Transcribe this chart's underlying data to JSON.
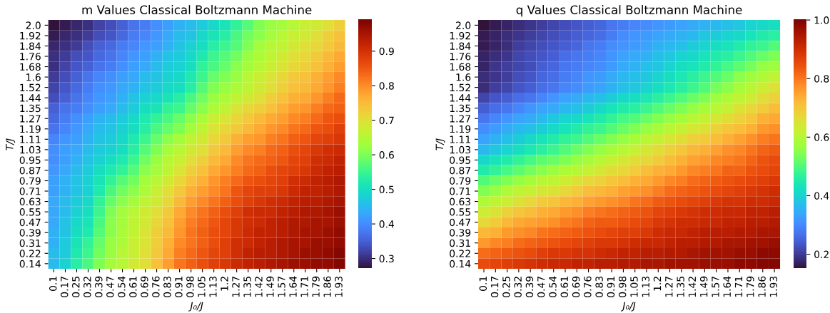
{
  "chart_data": [
    {
      "type": "heatmap",
      "title": "m Values Classical Boltzmann Machine",
      "xlabel": "J₀/J",
      "ylabel": "T/J",
      "categories": [
        "0.1",
        "0.17",
        "0.25",
        "0.32",
        "0.39",
        "0.47",
        "0.54",
        "0.61",
        "0.69",
        "0.76",
        "0.83",
        "0.91",
        "0.98",
        "1.05",
        "1.13",
        "1.2",
        "1.27",
        "1.35",
        "1.42",
        "1.49",
        "1.57",
        "1.64",
        "1.71",
        "1.79",
        "1.86",
        "1.93"
      ],
      "y_categories": [
        "2.0",
        "1.92",
        "1.84",
        "1.76",
        "1.68",
        "1.6",
        "1.52",
        "1.44",
        "1.35",
        "1.27",
        "1.19",
        "1.11",
        "1.03",
        "0.95",
        "0.87",
        "0.79",
        "0.71",
        "0.63",
        "0.55",
        "0.47",
        "0.39",
        "0.31",
        "0.22",
        "0.14"
      ],
      "clim": [
        0.27,
        0.99
      ],
      "cticks": [
        0.3,
        0.4,
        0.5,
        0.6,
        0.7,
        0.8,
        0.9
      ],
      "cells": [
        [
          0.27,
          0.28,
          0.29,
          0.3,
          0.32,
          0.33,
          0.35,
          0.37,
          0.38,
          0.4,
          0.42,
          0.44,
          0.45,
          0.47,
          0.49,
          0.51,
          0.54,
          0.57,
          0.6,
          0.62,
          0.63,
          0.65,
          0.67,
          0.68,
          0.7,
          0.72
        ],
        [
          0.28,
          0.29,
          0.3,
          0.31,
          0.33,
          0.34,
          0.36,
          0.38,
          0.39,
          0.41,
          0.43,
          0.45,
          0.46,
          0.49,
          0.51,
          0.53,
          0.56,
          0.59,
          0.61,
          0.63,
          0.65,
          0.67,
          0.68,
          0.7,
          0.72,
          0.74
        ],
        [
          0.29,
          0.3,
          0.31,
          0.33,
          0.35,
          0.36,
          0.38,
          0.39,
          0.41,
          0.42,
          0.44,
          0.46,
          0.48,
          0.5,
          0.53,
          0.55,
          0.57,
          0.6,
          0.63,
          0.65,
          0.66,
          0.68,
          0.7,
          0.71,
          0.73,
          0.75
        ],
        [
          0.3,
          0.31,
          0.33,
          0.34,
          0.36,
          0.37,
          0.39,
          0.41,
          0.42,
          0.44,
          0.46,
          0.47,
          0.49,
          0.52,
          0.55,
          0.57,
          0.59,
          0.62,
          0.64,
          0.66,
          0.68,
          0.7,
          0.71,
          0.73,
          0.75,
          0.77
        ],
        [
          0.3,
          0.32,
          0.34,
          0.35,
          0.37,
          0.38,
          0.4,
          0.42,
          0.43,
          0.45,
          0.47,
          0.48,
          0.5,
          0.54,
          0.56,
          0.58,
          0.61,
          0.63,
          0.65,
          0.67,
          0.69,
          0.71,
          0.72,
          0.74,
          0.76,
          0.78
        ],
        [
          0.31,
          0.33,
          0.35,
          0.37,
          0.39,
          0.4,
          0.42,
          0.43,
          0.45,
          0.46,
          0.48,
          0.49,
          0.52,
          0.55,
          0.58,
          0.6,
          0.62,
          0.65,
          0.67,
          0.69,
          0.71,
          0.73,
          0.74,
          0.76,
          0.78,
          0.8
        ],
        [
          0.32,
          0.34,
          0.36,
          0.38,
          0.4,
          0.41,
          0.43,
          0.44,
          0.46,
          0.47,
          0.49,
          0.5,
          0.53,
          0.57,
          0.6,
          0.62,
          0.64,
          0.66,
          0.68,
          0.7,
          0.72,
          0.74,
          0.75,
          0.77,
          0.79,
          0.81
        ],
        [
          0.33,
          0.35,
          0.37,
          0.39,
          0.41,
          0.42,
          0.44,
          0.46,
          0.48,
          0.49,
          0.51,
          0.53,
          0.56,
          0.59,
          0.62,
          0.64,
          0.66,
          0.68,
          0.7,
          0.72,
          0.74,
          0.76,
          0.77,
          0.79,
          0.81,
          0.83
        ],
        [
          0.35,
          0.37,
          0.38,
          0.4,
          0.42,
          0.43,
          0.45,
          0.47,
          0.5,
          0.51,
          0.54,
          0.55,
          0.58,
          0.61,
          0.64,
          0.66,
          0.69,
          0.71,
          0.72,
          0.74,
          0.76,
          0.78,
          0.79,
          0.81,
          0.83,
          0.84
        ],
        [
          0.36,
          0.38,
          0.4,
          0.42,
          0.44,
          0.45,
          0.47,
          0.49,
          0.52,
          0.54,
          0.56,
          0.58,
          0.61,
          0.64,
          0.67,
          0.69,
          0.71,
          0.73,
          0.75,
          0.77,
          0.78,
          0.8,
          0.81,
          0.83,
          0.85,
          0.86
        ],
        [
          0.37,
          0.39,
          0.41,
          0.43,
          0.45,
          0.46,
          0.48,
          0.5,
          0.53,
          0.56,
          0.58,
          0.6,
          0.63,
          0.66,
          0.69,
          0.71,
          0.73,
          0.75,
          0.77,
          0.79,
          0.8,
          0.82,
          0.83,
          0.85,
          0.86,
          0.88
        ],
        [
          0.39,
          0.41,
          0.42,
          0.44,
          0.46,
          0.47,
          0.49,
          0.52,
          0.55,
          0.58,
          0.61,
          0.63,
          0.66,
          0.68,
          0.71,
          0.73,
          0.76,
          0.78,
          0.79,
          0.81,
          0.82,
          0.84,
          0.85,
          0.87,
          0.88,
          0.89
        ],
        [
          0.4,
          0.42,
          0.43,
          0.45,
          0.47,
          0.48,
          0.5,
          0.53,
          0.57,
          0.6,
          0.63,
          0.65,
          0.68,
          0.7,
          0.73,
          0.75,
          0.78,
          0.8,
          0.81,
          0.83,
          0.84,
          0.86,
          0.87,
          0.89,
          0.9,
          0.91
        ],
        [
          0.4,
          0.42,
          0.44,
          0.46,
          0.48,
          0.5,
          0.52,
          0.55,
          0.59,
          0.62,
          0.65,
          0.67,
          0.7,
          0.72,
          0.75,
          0.77,
          0.8,
          0.82,
          0.83,
          0.84,
          0.85,
          0.87,
          0.88,
          0.9,
          0.91,
          0.92
        ],
        [
          0.41,
          0.43,
          0.45,
          0.47,
          0.5,
          0.52,
          0.54,
          0.57,
          0.61,
          0.63,
          0.66,
          0.69,
          0.72,
          0.74,
          0.77,
          0.79,
          0.81,
          0.83,
          0.84,
          0.86,
          0.87,
          0.88,
          0.89,
          0.91,
          0.92,
          0.93
        ],
        [
          0.42,
          0.44,
          0.46,
          0.48,
          0.51,
          0.54,
          0.57,
          0.59,
          0.63,
          0.65,
          0.68,
          0.71,
          0.74,
          0.76,
          0.79,
          0.81,
          0.83,
          0.85,
          0.86,
          0.87,
          0.88,
          0.9,
          0.91,
          0.92,
          0.93,
          0.94
        ],
        [
          0.42,
          0.44,
          0.46,
          0.48,
          0.52,
          0.56,
          0.59,
          0.61,
          0.64,
          0.67,
          0.7,
          0.73,
          0.76,
          0.78,
          0.8,
          0.82,
          0.85,
          0.87,
          0.88,
          0.88,
          0.89,
          0.91,
          0.92,
          0.92,
          0.93,
          0.94
        ],
        [
          0.43,
          0.45,
          0.47,
          0.49,
          0.54,
          0.58,
          0.61,
          0.63,
          0.66,
          0.68,
          0.71,
          0.75,
          0.78,
          0.8,
          0.82,
          0.84,
          0.86,
          0.88,
          0.89,
          0.9,
          0.91,
          0.92,
          0.93,
          0.93,
          0.94,
          0.95
        ],
        [
          0.43,
          0.45,
          0.48,
          0.5,
          0.55,
          0.6,
          0.63,
          0.65,
          0.68,
          0.7,
          0.73,
          0.77,
          0.8,
          0.82,
          0.84,
          0.86,
          0.88,
          0.9,
          0.91,
          0.91,
          0.92,
          0.93,
          0.94,
          0.94,
          0.95,
          0.96
        ],
        [
          0.43,
          0.46,
          0.49,
          0.51,
          0.56,
          0.61,
          0.63,
          0.66,
          0.68,
          0.71,
          0.74,
          0.78,
          0.81,
          0.83,
          0.85,
          0.87,
          0.89,
          0.9,
          0.91,
          0.92,
          0.93,
          0.94,
          0.94,
          0.95,
          0.95,
          0.96
        ],
        [
          0.44,
          0.46,
          0.5,
          0.52,
          0.57,
          0.61,
          0.64,
          0.66,
          0.69,
          0.72,
          0.75,
          0.79,
          0.82,
          0.84,
          0.86,
          0.87,
          0.89,
          0.91,
          0.92,
          0.92,
          0.93,
          0.94,
          0.95,
          0.95,
          0.96,
          0.97
        ],
        [
          0.44,
          0.47,
          0.51,
          0.54,
          0.58,
          0.62,
          0.64,
          0.67,
          0.69,
          0.72,
          0.76,
          0.8,
          0.82,
          0.84,
          0.86,
          0.88,
          0.9,
          0.91,
          0.92,
          0.93,
          0.94,
          0.95,
          0.95,
          0.96,
          0.96,
          0.97
        ],
        [
          0.45,
          0.47,
          0.52,
          0.55,
          0.59,
          0.62,
          0.65,
          0.67,
          0.7,
          0.73,
          0.77,
          0.81,
          0.83,
          0.85,
          0.87,
          0.88,
          0.9,
          0.92,
          0.93,
          0.93,
          0.94,
          0.95,
          0.96,
          0.96,
          0.97,
          0.98
        ],
        [
          0.45,
          0.48,
          0.53,
          0.56,
          0.6,
          0.63,
          0.65,
          0.68,
          0.7,
          0.74,
          0.78,
          0.82,
          0.84,
          0.86,
          0.88,
          0.89,
          0.91,
          0.92,
          0.93,
          0.94,
          0.95,
          0.96,
          0.96,
          0.97,
          0.97,
          0.98
        ]
      ]
    },
    {
      "type": "heatmap",
      "title": "q Values Classical Boltzmann Machine",
      "xlabel": "J₀/J",
      "ylabel": "T/J",
      "categories": [
        "0.1",
        "0.17",
        "0.25",
        "0.32",
        "0.39",
        "0.47",
        "0.54",
        "0.61",
        "0.69",
        "0.76",
        "0.83",
        "0.91",
        "0.98",
        "1.05",
        "1.13",
        "1.2",
        "1.27",
        "1.35",
        "1.42",
        "1.49",
        "1.57",
        "1.64",
        "1.71",
        "1.79",
        "1.86",
        "1.93"
      ],
      "y_categories": [
        "2.0",
        "1.92",
        "1.84",
        "1.76",
        "1.68",
        "1.6",
        "1.52",
        "1.44",
        "1.35",
        "1.27",
        "1.19",
        "1.11",
        "1.03",
        "0.95",
        "0.87",
        "0.79",
        "0.71",
        "0.63",
        "0.55",
        "0.47",
        "0.39",
        "0.31",
        "0.22",
        "0.14"
      ],
      "clim": [
        0.15,
        1.0
      ],
      "cticks": [
        0.2,
        0.4,
        0.6,
        0.8,
        {
          "value": 1.0,
          "label": "1.0"
        }
      ],
      "cells": [
        [
          0.15,
          0.16,
          0.17,
          0.18,
          0.19,
          0.2,
          0.21,
          0.22,
          0.23,
          0.24,
          0.25,
          0.27,
          0.28,
          0.29,
          0.3,
          0.31,
          0.32,
          0.33,
          0.34,
          0.35,
          0.36,
          0.37,
          0.38,
          0.4,
          0.41,
          0.42
        ],
        [
          0.16,
          0.17,
          0.18,
          0.19,
          0.2,
          0.21,
          0.22,
          0.23,
          0.24,
          0.25,
          0.26,
          0.28,
          0.3,
          0.31,
          0.32,
          0.33,
          0.34,
          0.35,
          0.36,
          0.38,
          0.39,
          0.4,
          0.41,
          0.43,
          0.45,
          0.46
        ],
        [
          0.16,
          0.17,
          0.18,
          0.2,
          0.21,
          0.22,
          0.23,
          0.24,
          0.25,
          0.27,
          0.28,
          0.3,
          0.31,
          0.32,
          0.33,
          0.35,
          0.36,
          0.37,
          0.39,
          0.4,
          0.42,
          0.43,
          0.45,
          0.47,
          0.48,
          0.5
        ],
        [
          0.17,
          0.18,
          0.19,
          0.21,
          0.22,
          0.23,
          0.24,
          0.26,
          0.27,
          0.28,
          0.29,
          0.31,
          0.33,
          0.34,
          0.35,
          0.37,
          0.38,
          0.4,
          0.41,
          0.43,
          0.45,
          0.46,
          0.48,
          0.5,
          0.52,
          0.54
        ],
        [
          0.17,
          0.19,
          0.2,
          0.21,
          0.22,
          0.24,
          0.25,
          0.27,
          0.28,
          0.29,
          0.3,
          0.32,
          0.34,
          0.35,
          0.37,
          0.38,
          0.4,
          0.42,
          0.43,
          0.45,
          0.47,
          0.49,
          0.51,
          0.53,
          0.56,
          0.57
        ],
        [
          0.18,
          0.19,
          0.2,
          0.22,
          0.23,
          0.25,
          0.26,
          0.28,
          0.29,
          0.31,
          0.32,
          0.34,
          0.36,
          0.37,
          0.38,
          0.4,
          0.42,
          0.44,
          0.46,
          0.48,
          0.5,
          0.52,
          0.55,
          0.57,
          0.59,
          0.61
        ],
        [
          0.18,
          0.2,
          0.21,
          0.23,
          0.24,
          0.26,
          0.27,
          0.29,
          0.3,
          0.32,
          0.33,
          0.35,
          0.37,
          0.38,
          0.4,
          0.42,
          0.44,
          0.46,
          0.48,
          0.5,
          0.53,
          0.55,
          0.58,
          0.6,
          0.63,
          0.65
        ],
        [
          0.21,
          0.23,
          0.24,
          0.26,
          0.27,
          0.29,
          0.31,
          0.33,
          0.34,
          0.36,
          0.37,
          0.39,
          0.41,
          0.42,
          0.44,
          0.46,
          0.48,
          0.5,
          0.52,
          0.54,
          0.57,
          0.59,
          0.61,
          0.63,
          0.66,
          0.68
        ],
        [
          0.24,
          0.26,
          0.27,
          0.29,
          0.31,
          0.33,
          0.34,
          0.36,
          0.37,
          0.39,
          0.41,
          0.43,
          0.45,
          0.46,
          0.48,
          0.5,
          0.52,
          0.54,
          0.56,
          0.58,
          0.6,
          0.62,
          0.65,
          0.67,
          0.69,
          0.71
        ],
        [
          0.27,
          0.29,
          0.31,
          0.33,
          0.34,
          0.36,
          0.38,
          0.4,
          0.41,
          0.43,
          0.45,
          0.47,
          0.49,
          0.5,
          0.52,
          0.54,
          0.56,
          0.58,
          0.6,
          0.62,
          0.64,
          0.66,
          0.68,
          0.7,
          0.73,
          0.74
        ],
        [
          0.3,
          0.32,
          0.34,
          0.36,
          0.37,
          0.39,
          0.41,
          0.43,
          0.45,
          0.47,
          0.48,
          0.5,
          0.52,
          0.54,
          0.56,
          0.58,
          0.6,
          0.62,
          0.64,
          0.65,
          0.68,
          0.7,
          0.71,
          0.73,
          0.76,
          0.77
        ],
        [
          0.33,
          0.35,
          0.37,
          0.39,
          0.41,
          0.43,
          0.45,
          0.47,
          0.48,
          0.5,
          0.52,
          0.54,
          0.56,
          0.58,
          0.6,
          0.62,
          0.64,
          0.66,
          0.68,
          0.69,
          0.71,
          0.73,
          0.75,
          0.77,
          0.79,
          0.8
        ],
        [
          0.36,
          0.38,
          0.4,
          0.42,
          0.44,
          0.46,
          0.48,
          0.5,
          0.52,
          0.54,
          0.56,
          0.58,
          0.6,
          0.62,
          0.64,
          0.66,
          0.68,
          0.7,
          0.72,
          0.73,
          0.75,
          0.77,
          0.78,
          0.8,
          0.82,
          0.83
        ],
        [
          0.41,
          0.43,
          0.45,
          0.47,
          0.49,
          0.51,
          0.52,
          0.54,
          0.56,
          0.58,
          0.6,
          0.62,
          0.64,
          0.66,
          0.67,
          0.69,
          0.71,
          0.73,
          0.75,
          0.76,
          0.78,
          0.79,
          0.8,
          0.82,
          0.84,
          0.85
        ],
        [
          0.45,
          0.47,
          0.49,
          0.51,
          0.53,
          0.55,
          0.57,
          0.59,
          0.6,
          0.62,
          0.64,
          0.66,
          0.67,
          0.69,
          0.71,
          0.73,
          0.74,
          0.76,
          0.78,
          0.79,
          0.8,
          0.82,
          0.82,
          0.84,
          0.85,
          0.86
        ],
        [
          0.5,
          0.52,
          0.54,
          0.56,
          0.58,
          0.6,
          0.61,
          0.63,
          0.65,
          0.67,
          0.68,
          0.7,
          0.71,
          0.73,
          0.74,
          0.76,
          0.78,
          0.79,
          0.81,
          0.82,
          0.83,
          0.84,
          0.85,
          0.86,
          0.87,
          0.88
        ],
        [
          0.54,
          0.56,
          0.59,
          0.61,
          0.62,
          0.64,
          0.65,
          0.67,
          0.69,
          0.71,
          0.72,
          0.73,
          0.75,
          0.76,
          0.77,
          0.79,
          0.81,
          0.82,
          0.83,
          0.84,
          0.85,
          0.86,
          0.87,
          0.88,
          0.89,
          0.9
        ],
        [
          0.59,
          0.61,
          0.63,
          0.65,
          0.67,
          0.69,
          0.7,
          0.72,
          0.73,
          0.75,
          0.76,
          0.77,
          0.78,
          0.8,
          0.81,
          0.83,
          0.84,
          0.85,
          0.86,
          0.87,
          0.88,
          0.89,
          0.89,
          0.9,
          0.9,
          0.91
        ],
        [
          0.63,
          0.65,
          0.68,
          0.7,
          0.71,
          0.73,
          0.74,
          0.76,
          0.77,
          0.79,
          0.8,
          0.81,
          0.82,
          0.83,
          0.84,
          0.86,
          0.87,
          0.88,
          0.89,
          0.9,
          0.9,
          0.91,
          0.91,
          0.92,
          0.92,
          0.93
        ],
        [
          0.67,
          0.69,
          0.72,
          0.74,
          0.75,
          0.76,
          0.77,
          0.79,
          0.8,
          0.82,
          0.83,
          0.83,
          0.84,
          0.85,
          0.86,
          0.88,
          0.89,
          0.9,
          0.9,
          0.91,
          0.91,
          0.92,
          0.92,
          0.93,
          0.93,
          0.94
        ],
        [
          0.72,
          0.73,
          0.76,
          0.77,
          0.78,
          0.8,
          0.81,
          0.82,
          0.83,
          0.84,
          0.85,
          0.86,
          0.87,
          0.87,
          0.88,
          0.9,
          0.91,
          0.91,
          0.92,
          0.93,
          0.93,
          0.93,
          0.94,
          0.94,
          0.95,
          0.95
        ],
        [
          0.76,
          0.78,
          0.79,
          0.81,
          0.82,
          0.83,
          0.84,
          0.85,
          0.86,
          0.87,
          0.88,
          0.88,
          0.89,
          0.9,
          0.91,
          0.91,
          0.92,
          0.93,
          0.93,
          0.94,
          0.94,
          0.95,
          0.95,
          0.96,
          0.96,
          0.97
        ],
        [
          0.81,
          0.82,
          0.83,
          0.84,
          0.85,
          0.87,
          0.88,
          0.88,
          0.89,
          0.89,
          0.9,
          0.91,
          0.92,
          0.92,
          0.93,
          0.93,
          0.94,
          0.94,
          0.95,
          0.96,
          0.96,
          0.96,
          0.97,
          0.97,
          0.98,
          0.98
        ],
        [
          0.85,
          0.86,
          0.87,
          0.88,
          0.89,
          0.9,
          0.91,
          0.91,
          0.92,
          0.92,
          0.93,
          0.93,
          0.94,
          0.94,
          0.95,
          0.95,
          0.96,
          0.96,
          0.96,
          0.97,
          0.97,
          0.97,
          0.98,
          0.98,
          0.99,
          0.99
        ]
      ]
    }
  ]
}
